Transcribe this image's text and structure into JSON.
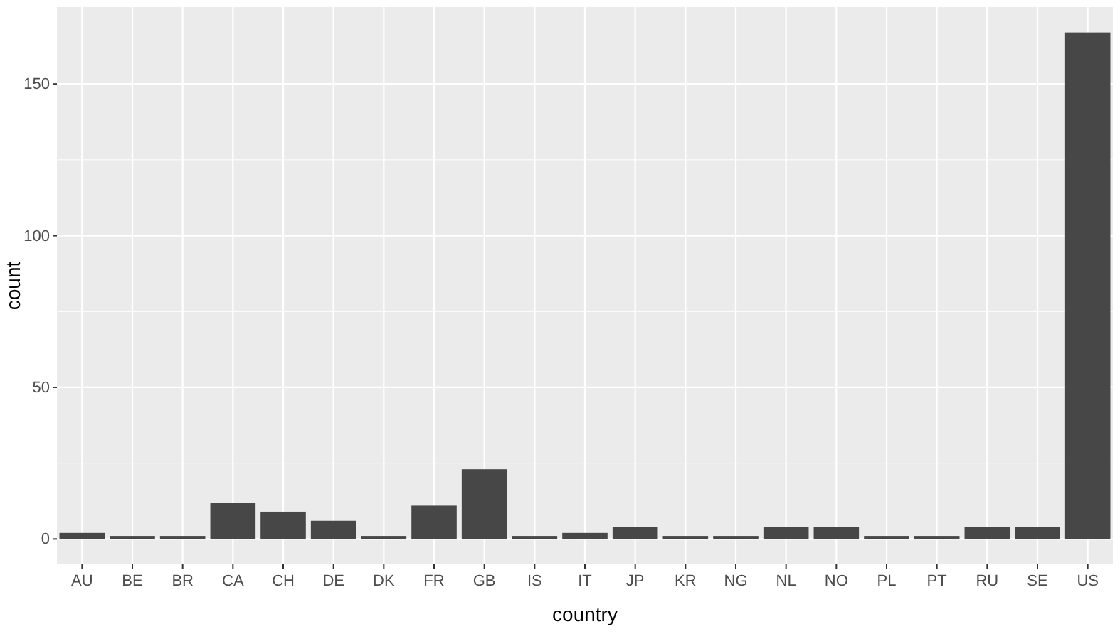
{
  "chart_data": {
    "type": "bar",
    "xlabel": "country",
    "ylabel": "count",
    "categories": [
      "AU",
      "BE",
      "BR",
      "CA",
      "CH",
      "DE",
      "DK",
      "FR",
      "GB",
      "IS",
      "IT",
      "JP",
      "KR",
      "NG",
      "NL",
      "NO",
      "PL",
      "PT",
      "RU",
      "SE",
      "US"
    ],
    "values": [
      2,
      1,
      1,
      12,
      9,
      6,
      1,
      11,
      23,
      1,
      2,
      4,
      1,
      1,
      4,
      4,
      1,
      1,
      4,
      4,
      167
    ],
    "color": "#474747",
    "ylim": [
      -8.35,
      175.35
    ],
    "yticks": [
      0,
      50,
      100,
      150
    ],
    "grid": true
  }
}
